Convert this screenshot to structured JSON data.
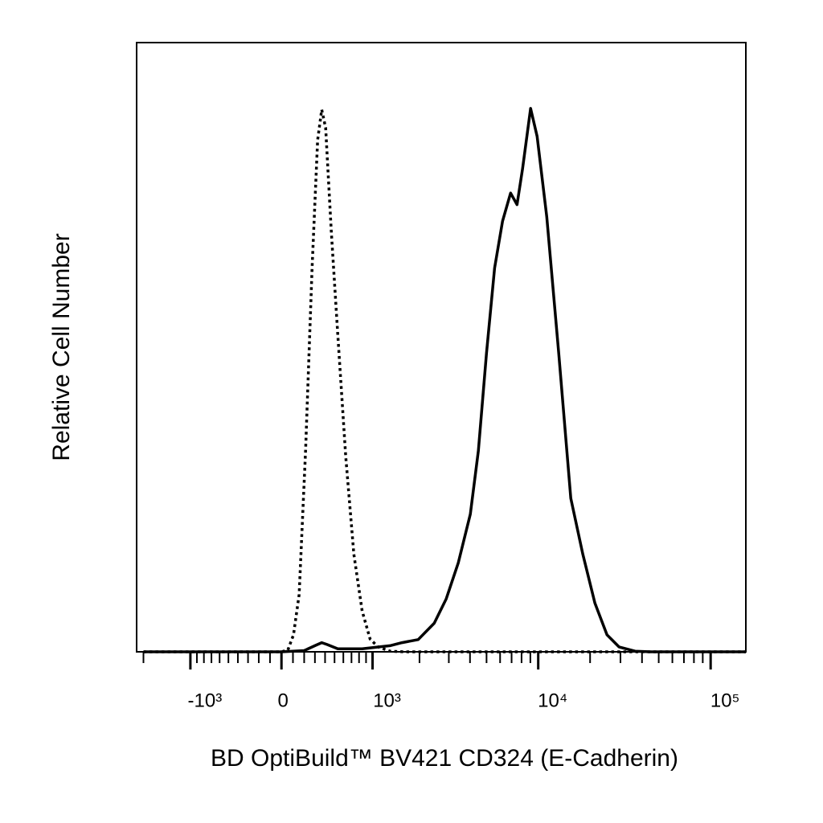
{
  "chart_data": {
    "type": "histogram-overlay",
    "x_label": "BD OptiBuild™  BV421 CD324 (E-Cadherin)",
    "y_label": "Relative Cell Number",
    "xscale": "biexponential",
    "xlim": [
      -2200,
      160000
    ],
    "ylim": [
      0,
      100
    ],
    "xticks": [
      {
        "value": -1000,
        "label": "-10³"
      },
      0,
      {
        "value": 1000,
        "label": "10³"
      },
      {
        "value": 10000,
        "label": "10⁴"
      },
      {
        "value": 100000,
        "label": "10⁵"
      }
    ],
    "xminorticks": [
      -2000,
      -900,
      -800,
      -700,
      -600,
      -500,
      -400,
      -300,
      -200,
      -100,
      100,
      200,
      300,
      400,
      500,
      600,
      700,
      800,
      900,
      2000,
      3000,
      4000,
      5000,
      6000,
      7000,
      8000,
      9000,
      20000,
      30000,
      40000,
      50000,
      60000,
      70000,
      80000,
      90000
    ],
    "series": [
      {
        "color": "#000000",
        "dash": "dotted",
        "x": [
          -2000,
          0,
          56,
          105,
          155,
          213,
          273,
          326,
          366,
          406,
          465,
          536,
          629,
          731,
          843,
          962,
          1091,
          1306,
          1600,
          160000
        ],
        "values": [
          0,
          0,
          0.3,
          2.8,
          9.4,
          33,
          63,
          84,
          89,
          86,
          69,
          52,
          32,
          16,
          6.7,
          2.1,
          0.8,
          0.1,
          0,
          0
        ]
      },
      {
        "color": "#000000",
        "dash": "solid",
        "x": [
          -2000,
          0,
          200,
          300,
          366,
          420,
          536,
          843,
          1306,
          1560,
          1963,
          2455,
          2896,
          3413,
          4020,
          4479,
          4996,
          5572,
          6203,
          6905,
          7530,
          8110,
          9033,
          9850,
          11210,
          13160,
          15460,
          18150,
          21320,
          25060,
          29440,
          36470,
          45000,
          160000
        ],
        "values": [
          0,
          0,
          0.2,
          1,
          1.5,
          1.2,
          0.5,
          0.5,
          1,
          1.5,
          2,
          4.7,
          8.7,
          14.6,
          22.6,
          33,
          49,
          63,
          70.7,
          75.3,
          73.4,
          79.3,
          89.2,
          84.6,
          71.4,
          49,
          25.2,
          16,
          8,
          2.8,
          0.8,
          0.1,
          0,
          0
        ]
      }
    ]
  }
}
